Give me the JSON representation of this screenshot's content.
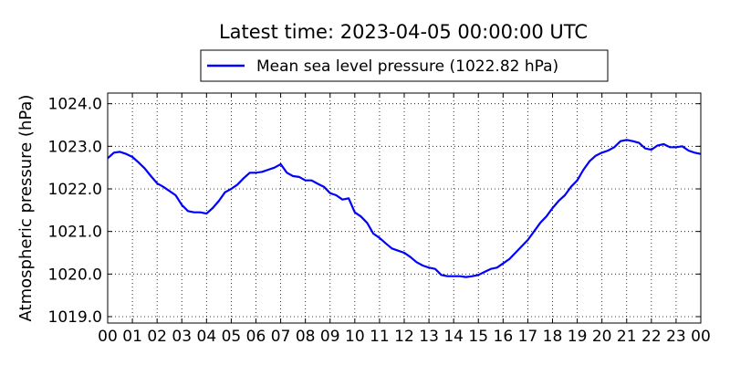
{
  "chart_data": {
    "type": "line",
    "title": "Latest time: 2023-04-05 00:00:00 UTC",
    "xlabel": "",
    "ylabel": "Atmospheric pressure (hPa)",
    "xlim": [
      0,
      24
    ],
    "ylim": [
      1018.85,
      1024.25
    ],
    "x_ticks": [
      "00",
      "01",
      "02",
      "03",
      "04",
      "05",
      "06",
      "07",
      "08",
      "09",
      "10",
      "11",
      "12",
      "13",
      "14",
      "15",
      "16",
      "17",
      "18",
      "19",
      "20",
      "21",
      "22",
      "23",
      "00"
    ],
    "y_ticks": [
      1019.0,
      1020.0,
      1021.0,
      1022.0,
      1023.0,
      1024.0
    ],
    "y_tick_labels": [
      "1019.0",
      "1020.0",
      "1021.0",
      "1022.0",
      "1023.0",
      "1024.0"
    ],
    "grid": true,
    "legend_position": "top-center",
    "series": [
      {
        "name": "Mean sea level pressure (1022.82 hPa)",
        "color": "#0000ff",
        "x": [
          0,
          0.25,
          0.5,
          0.75,
          1.0,
          1.25,
          1.5,
          1.75,
          2.0,
          2.25,
          2.5,
          2.75,
          3.0,
          3.25,
          3.5,
          3.75,
          4.0,
          4.25,
          4.5,
          4.75,
          5.0,
          5.25,
          5.5,
          5.75,
          6.0,
          6.25,
          6.5,
          6.75,
          7.0,
          7.25,
          7.5,
          7.75,
          8.0,
          8.25,
          8.5,
          8.75,
          9.0,
          9.25,
          9.5,
          9.75,
          10.0,
          10.25,
          10.5,
          10.75,
          11.0,
          11.25,
          11.5,
          11.75,
          12.0,
          12.25,
          12.5,
          12.75,
          13.0,
          13.25,
          13.5,
          13.75,
          14.0,
          14.25,
          14.5,
          14.75,
          15.0,
          15.25,
          15.5,
          15.75,
          16.0,
          16.25,
          16.5,
          16.75,
          17.0,
          17.25,
          17.5,
          17.75,
          18.0,
          18.25,
          18.5,
          18.75,
          19.0,
          19.25,
          19.5,
          19.75,
          20.0,
          20.25,
          20.5,
          20.75,
          21.0,
          21.25,
          21.5,
          21.75,
          22.0,
          22.25,
          22.5,
          22.75,
          23.0,
          23.25,
          23.5,
          23.75,
          24.0
        ],
        "y": [
          1022.72,
          1022.85,
          1022.87,
          1022.82,
          1022.75,
          1022.62,
          1022.48,
          1022.3,
          1022.13,
          1022.05,
          1021.95,
          1021.85,
          1021.62,
          1021.48,
          1021.45,
          1021.45,
          1021.42,
          1021.55,
          1021.72,
          1021.92,
          1022.0,
          1022.1,
          1022.25,
          1022.38,
          1022.38,
          1022.4,
          1022.45,
          1022.5,
          1022.58,
          1022.38,
          1022.3,
          1022.28,
          1022.2,
          1022.2,
          1022.12,
          1022.05,
          1021.9,
          1021.85,
          1021.75,
          1021.78,
          1021.45,
          1021.35,
          1021.2,
          1020.95,
          1020.85,
          1020.72,
          1020.6,
          1020.55,
          1020.5,
          1020.4,
          1020.28,
          1020.2,
          1020.15,
          1020.12,
          1019.98,
          1019.95,
          1019.95,
          1019.95,
          1019.93,
          1019.95,
          1019.98,
          1020.05,
          1020.12,
          1020.15,
          1020.25,
          1020.35,
          1020.5,
          1020.65,
          1020.8,
          1021.0,
          1021.2,
          1021.35,
          1021.55,
          1021.72,
          1021.85,
          1022.05,
          1022.2,
          1022.45,
          1022.65,
          1022.78,
          1022.85,
          1022.9,
          1022.98,
          1023.12,
          1023.15,
          1023.12,
          1023.08,
          1022.95,
          1022.92,
          1023.02,
          1023.05,
          1022.98,
          1022.98,
          1023.0,
          1022.9,
          1022.85,
          1022.82
        ]
      }
    ]
  }
}
